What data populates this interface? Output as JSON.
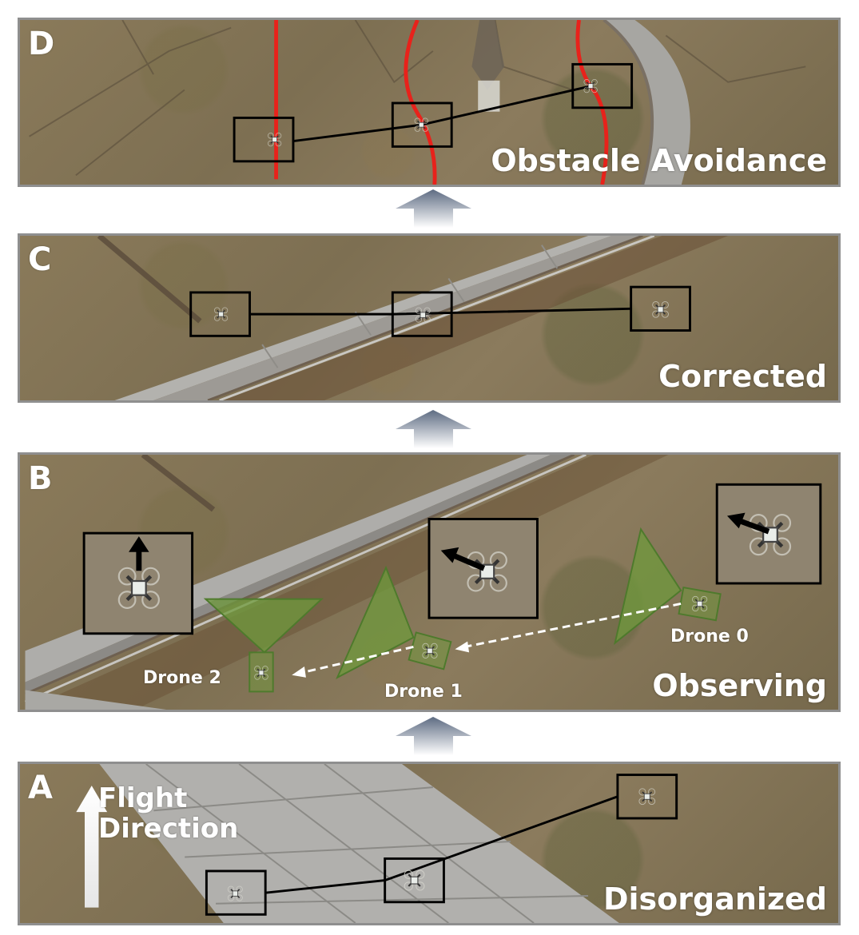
{
  "panels": {
    "d": {
      "letter": "D",
      "caption": "Obstacle Avoidance"
    },
    "c": {
      "letter": "C",
      "caption": "Corrected"
    },
    "b": {
      "letter": "B",
      "caption": "Observing",
      "drones": {
        "drone0": "Drone 0",
        "drone1": "Drone 1",
        "drone2": "Drone 2"
      }
    },
    "a": {
      "letter": "A",
      "caption": "Disorganized",
      "flight_direction": "Flight\nDirection"
    }
  },
  "colors": {
    "obstacle_line": "#e8221b",
    "frame_box": "#000000",
    "fov_fill": "#6f9a3c",
    "arrow_gradient_top": "#6a7a90",
    "arrow_gradient_bottom": "#ffffff"
  },
  "icons": [
    "up-arrow-icon",
    "drone-icon",
    "heading-arrow-icon",
    "flight-direction-arrow-icon"
  ]
}
